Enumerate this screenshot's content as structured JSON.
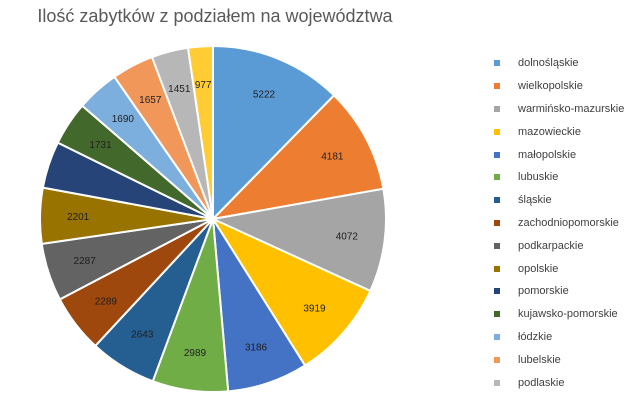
{
  "chart_data": {
    "type": "pie",
    "title": "Ilość zabytków z podziałem na województwa",
    "legend_position": "right",
    "slices": [
      {
        "label": "dolnośląskie",
        "value": 5222,
        "value_label": "5222",
        "color": "#5b9bd5",
        "label_color": "#1f1f1f"
      },
      {
        "label": "wielkopolskie",
        "value": 4181,
        "value_label": "4181",
        "color": "#ed7d31",
        "label_color": "#1f1f1f"
      },
      {
        "label": "warmińsko-mazurskie",
        "value": 4072,
        "value_label": "4072",
        "color": "#a5a5a5",
        "label_color": "#1f1f1f"
      },
      {
        "label": "mazowieckie",
        "value": 3919,
        "value_label": "3919",
        "color": "#ffc000",
        "label_color": "#1f1f1f"
      },
      {
        "label": "małopolskie",
        "value": 3186,
        "value_label": "3186",
        "color": "#4472c4",
        "label_color": "#1f1f1f"
      },
      {
        "label": "lubuskie",
        "value": 2989,
        "value_label": "2989",
        "color": "#70ad47",
        "label_color": "#1f1f1f"
      },
      {
        "label": "śląskie",
        "value": 2643,
        "value_label": "2643",
        "color": "#255e91",
        "label_color": "#1f1f1f"
      },
      {
        "label": "zachodniopomorskie",
        "value": 2289,
        "value_label": "2289",
        "color": "#9e480e",
        "label_color": "#1f1f1f"
      },
      {
        "label": "podkarpackie",
        "value": 2287,
        "value_label": "2287",
        "color": "#636363",
        "label_color": "#1f1f1f"
      },
      {
        "label": "opolskie",
        "value": 2201,
        "value_label": "2201",
        "color": "#997300",
        "label_color": "#1f1f1f"
      },
      {
        "label": "pomorskie",
        "value": 1850,
        "value_label": "",
        "color": "#264478",
        "label_color": "#1f1f1f"
      },
      {
        "label": "kujawsko-pomorskie",
        "value": 1731,
        "value_label": "1731",
        "color": "#43682b",
        "label_color": "#1f1f1f"
      },
      {
        "label": "łódzkie",
        "value": 1690,
        "value_label": "1690",
        "color": "#7cafdd",
        "label_color": "#1f1f1f"
      },
      {
        "label": "lubelskie",
        "value": 1657,
        "value_label": "1657",
        "color": "#f1975a",
        "label_color": "#1f1f1f"
      },
      {
        "label": "podlaskie",
        "value": 1451,
        "value_label": "1451",
        "color": "#b7b7b7",
        "label_color": "#1f1f1f"
      },
      {
        "label": "",
        "value": 977,
        "value_label": "977",
        "color": "#ffcd33",
        "label_color": "#1f1f1f"
      }
    ]
  }
}
